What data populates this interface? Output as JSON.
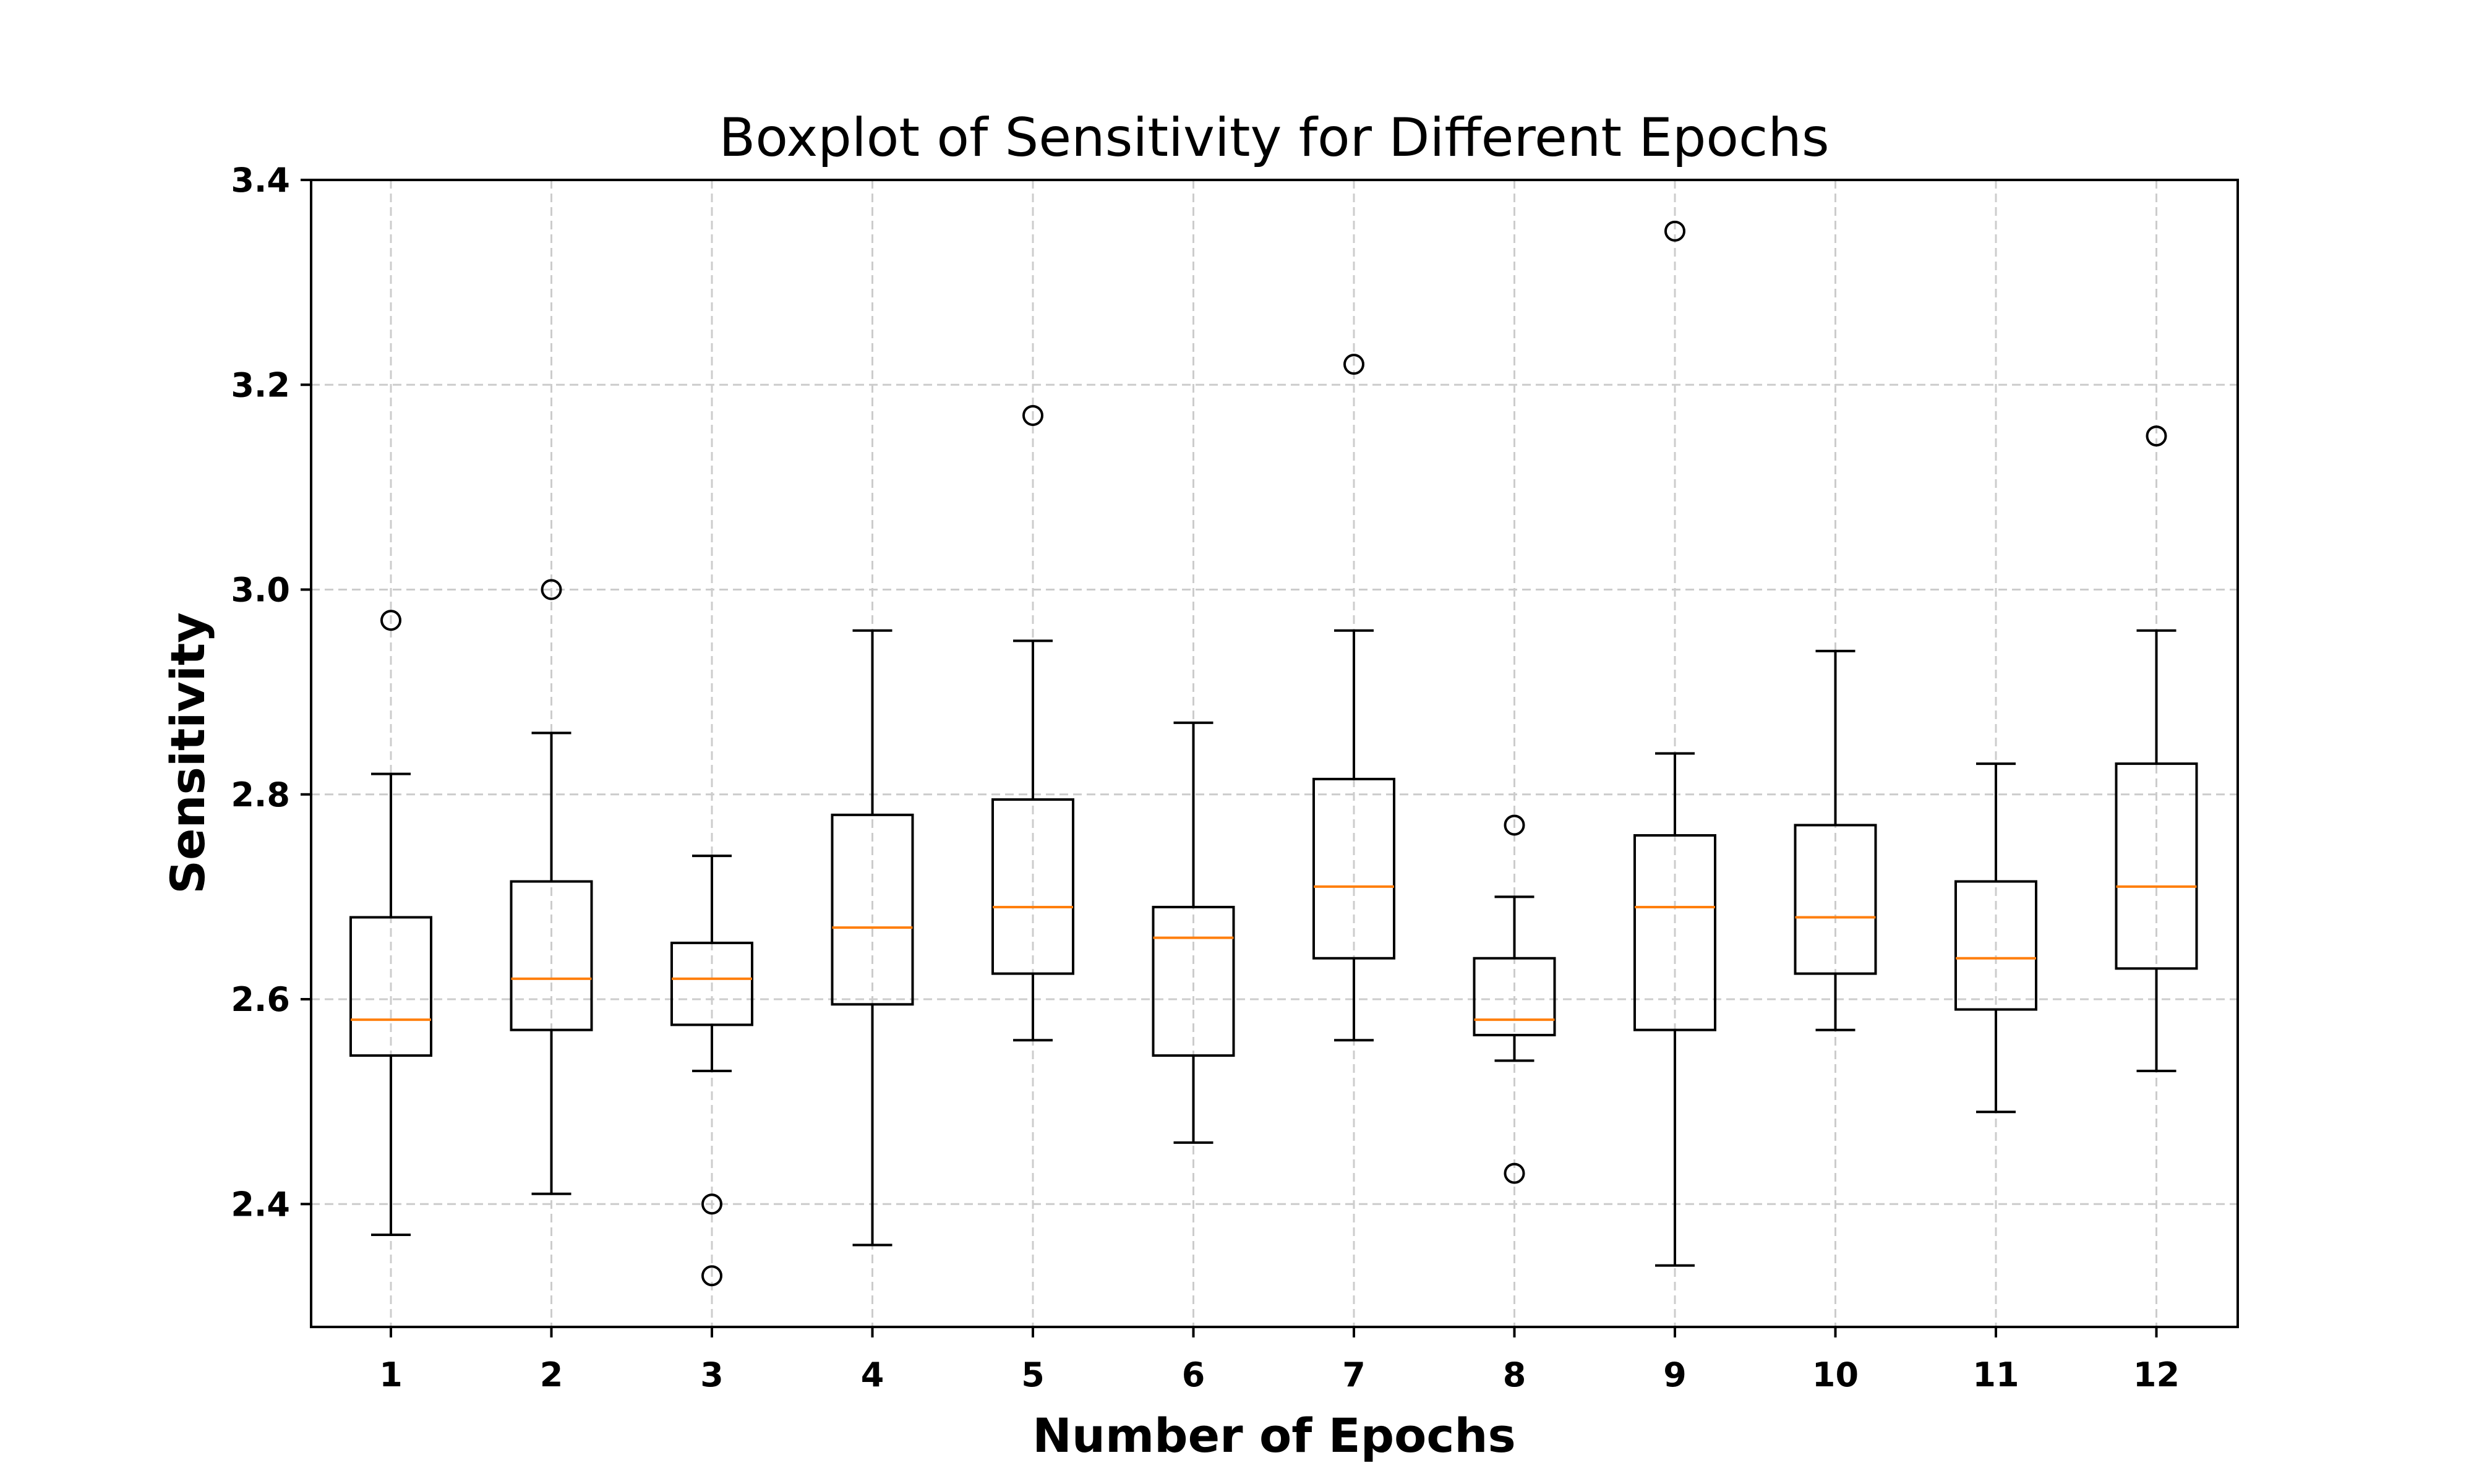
{
  "chart_data": {
    "type": "boxplot",
    "title": "Boxplot of Sensitivity for Different Epochs",
    "xlabel": "Number of Epochs",
    "ylabel": "Sensitivity",
    "categories": [
      "1",
      "2",
      "3",
      "4",
      "5",
      "6",
      "7",
      "8",
      "9",
      "10",
      "11",
      "12"
    ],
    "ylim": [
      2.28,
      3.4
    ],
    "yticks": [
      2.4,
      2.6,
      2.8,
      3.0,
      3.2,
      3.4
    ],
    "ytick_labels": [
      "2.4",
      "2.6",
      "2.8",
      "3.0",
      "3.2",
      "3.4"
    ],
    "grid": true,
    "colors": {
      "box": "#000000",
      "median": "#ff7f0e",
      "grid": "#cccccc"
    },
    "boxes": [
      {
        "label": "1",
        "whislo": 2.37,
        "q1": 2.545,
        "med": 2.58,
        "q3": 2.68,
        "whishi": 2.82,
        "fliers": [
          2.97
        ]
      },
      {
        "label": "2",
        "whislo": 2.41,
        "q1": 2.57,
        "med": 2.62,
        "q3": 2.715,
        "whishi": 2.86,
        "fliers": [
          3.0
        ]
      },
      {
        "label": "3",
        "whislo": 2.53,
        "q1": 2.575,
        "med": 2.62,
        "q3": 2.655,
        "whishi": 2.74,
        "fliers": [
          2.4,
          2.33
        ]
      },
      {
        "label": "4",
        "whislo": 2.36,
        "q1": 2.595,
        "med": 2.67,
        "q3": 2.78,
        "whishi": 2.96,
        "fliers": []
      },
      {
        "label": "5",
        "whislo": 2.56,
        "q1": 2.625,
        "med": 2.69,
        "q3": 2.795,
        "whishi": 2.95,
        "fliers": [
          3.17
        ]
      },
      {
        "label": "6",
        "whislo": 2.46,
        "q1": 2.545,
        "med": 2.66,
        "q3": 2.69,
        "whishi": 2.87,
        "fliers": []
      },
      {
        "label": "7",
        "whislo": 2.56,
        "q1": 2.64,
        "med": 2.71,
        "q3": 2.815,
        "whishi": 2.96,
        "fliers": [
          3.22
        ]
      },
      {
        "label": "8",
        "whislo": 2.54,
        "q1": 2.565,
        "med": 2.58,
        "q3": 2.64,
        "whishi": 2.7,
        "fliers": [
          2.77,
          2.43
        ]
      },
      {
        "label": "9",
        "whislo": 2.34,
        "q1": 2.57,
        "med": 2.69,
        "q3": 2.76,
        "whishi": 2.84,
        "fliers": [
          3.35
        ]
      },
      {
        "label": "10",
        "whislo": 2.57,
        "q1": 2.625,
        "med": 2.68,
        "q3": 2.77,
        "whishi": 2.94,
        "fliers": []
      },
      {
        "label": "11",
        "whislo": 2.49,
        "q1": 2.59,
        "med": 2.64,
        "q3": 2.715,
        "whishi": 2.83,
        "fliers": []
      },
      {
        "label": "12",
        "whislo": 2.53,
        "q1": 2.63,
        "med": 2.71,
        "q3": 2.83,
        "whishi": 2.96,
        "fliers": [
          3.15
        ]
      }
    ]
  }
}
